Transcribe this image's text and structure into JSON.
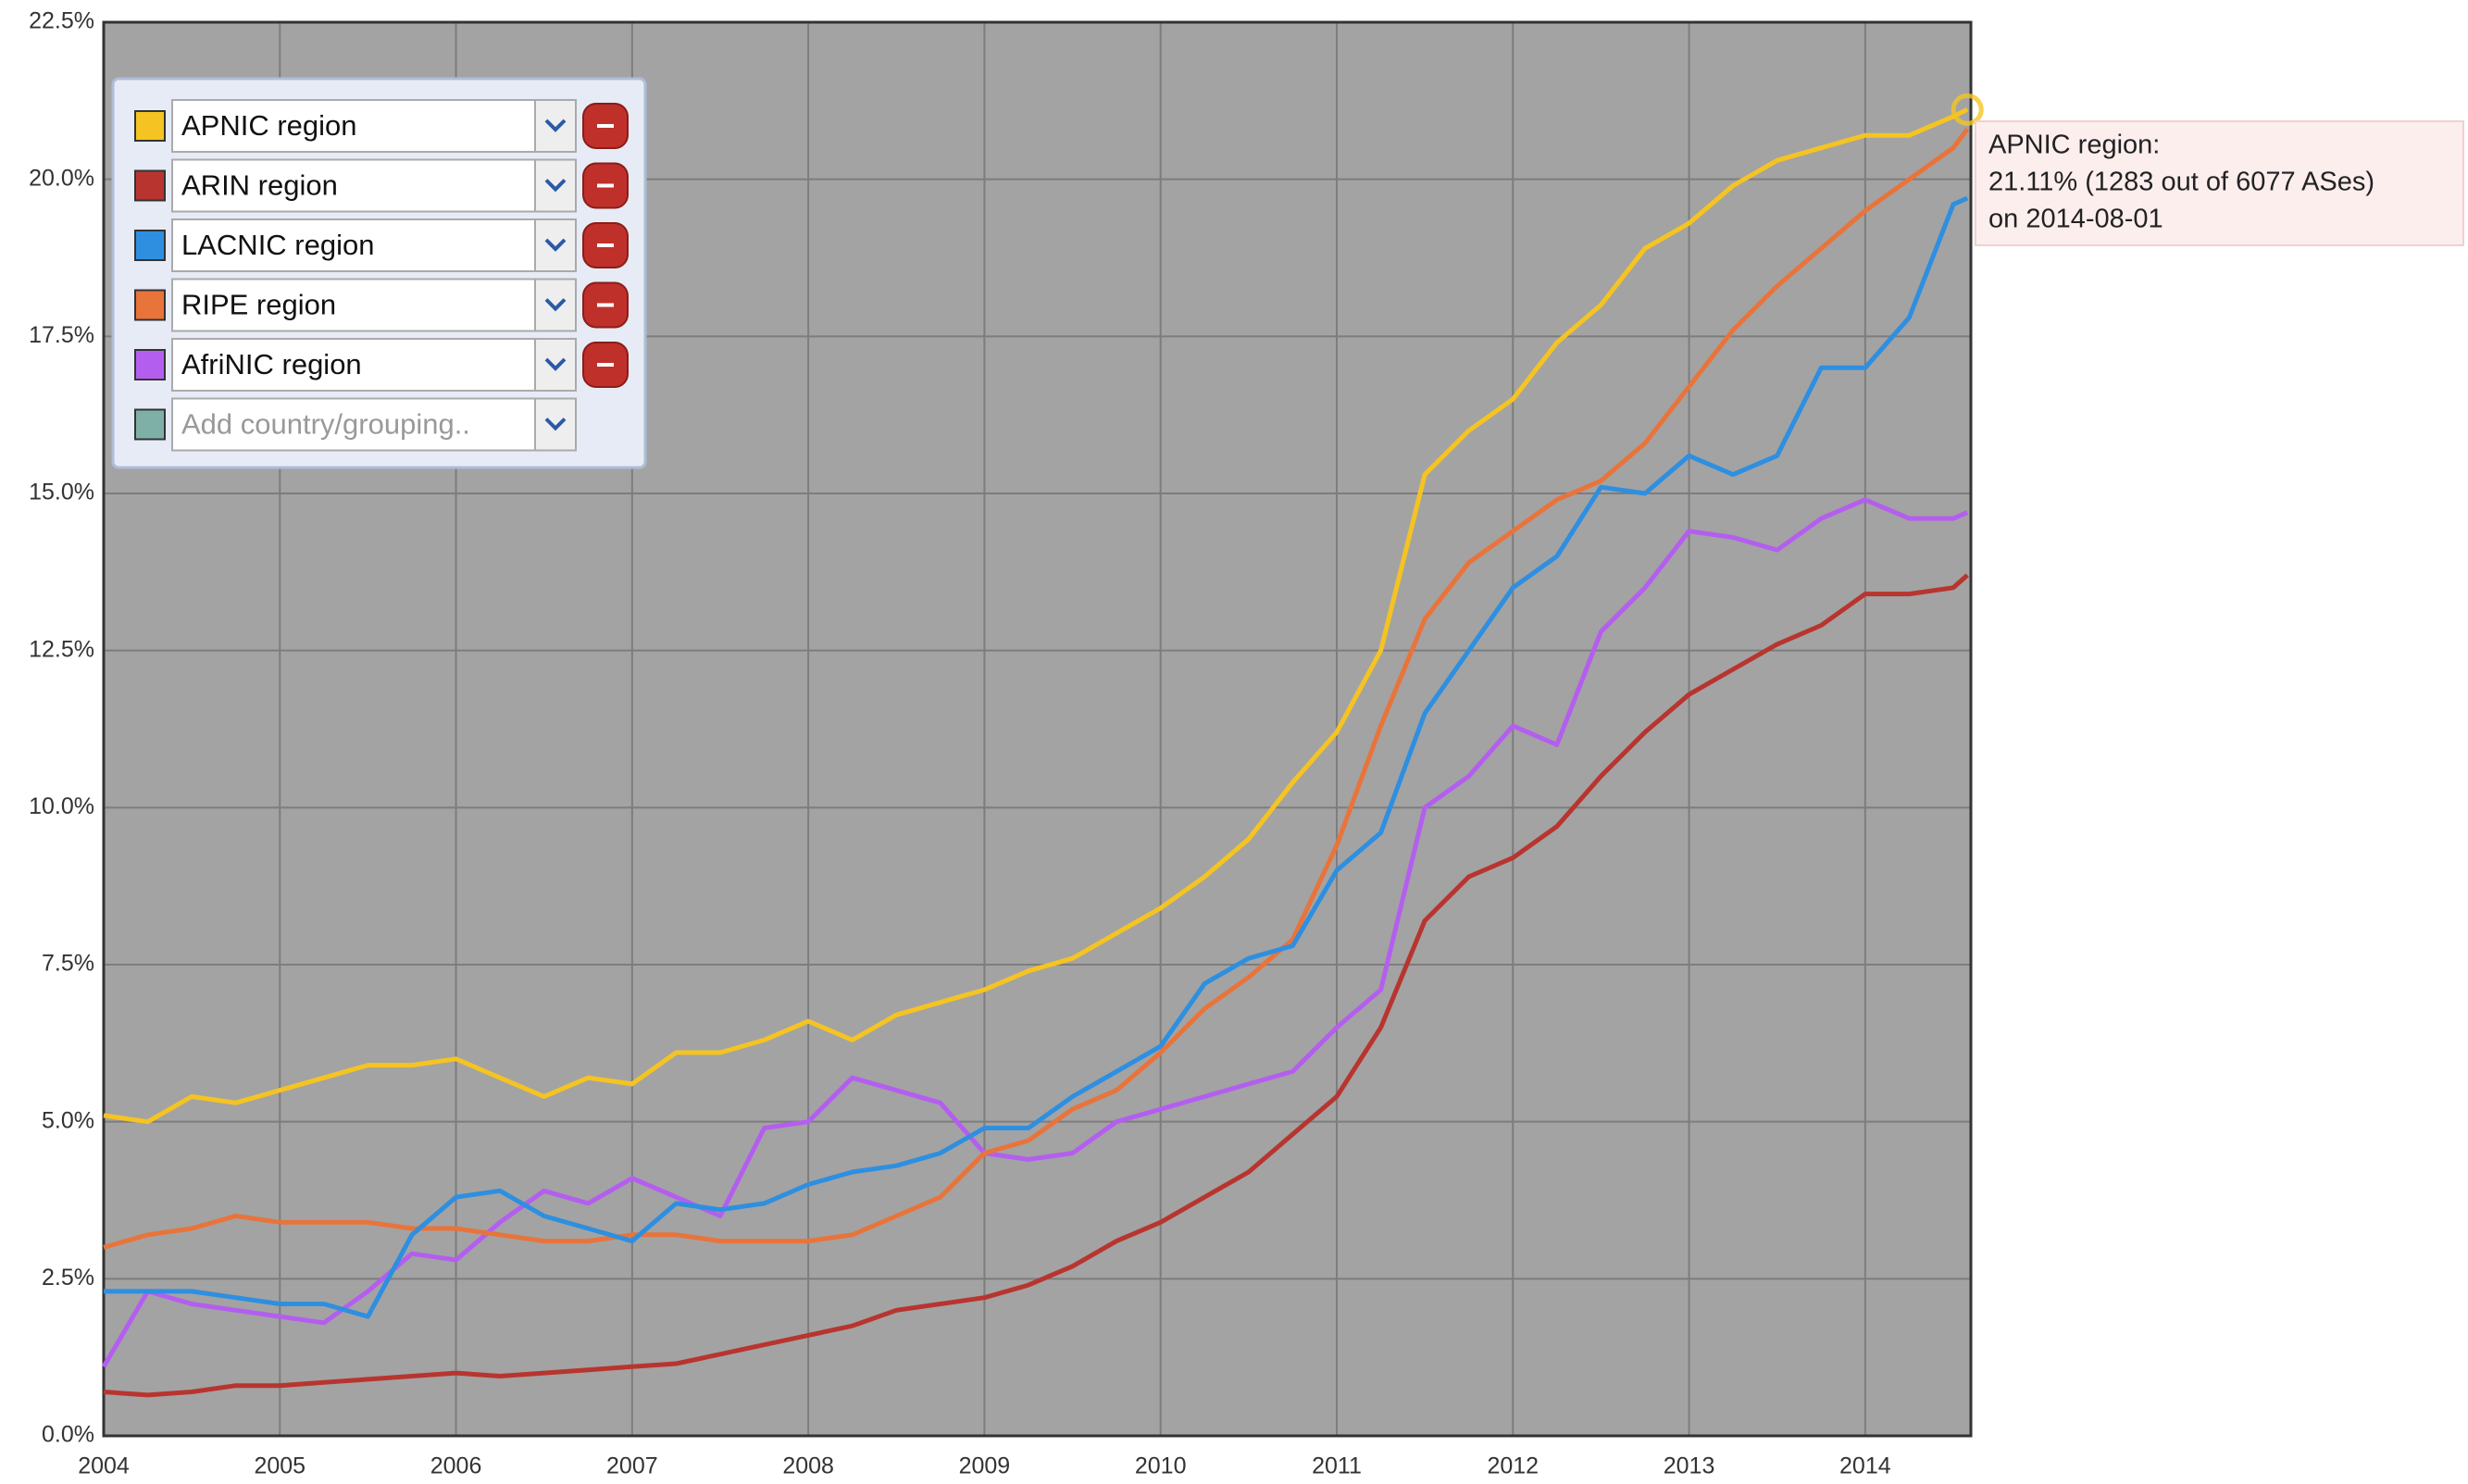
{
  "chart_data": {
    "type": "line",
    "x": [
      2004,
      2004.25,
      2004.5,
      2004.75,
      2005,
      2005.25,
      2005.5,
      2005.75,
      2006,
      2006.25,
      2006.5,
      2006.75,
      2007,
      2007.25,
      2007.5,
      2007.75,
      2008,
      2008.25,
      2008.5,
      2008.75,
      2009,
      2009.25,
      2009.5,
      2009.75,
      2010,
      2010.25,
      2010.5,
      2010.75,
      2011,
      2011.25,
      2011.5,
      2011.75,
      2012,
      2012.25,
      2012.5,
      2012.75,
      2013,
      2013.25,
      2013.5,
      2013.75,
      2014,
      2014.25,
      2014.5,
      2014.58
    ],
    "series": [
      {
        "name": "APNIC region",
        "color": "#f5c422",
        "values": [
          5.1,
          5.0,
          5.4,
          5.3,
          5.5,
          5.7,
          5.9,
          5.9,
          6.0,
          5.7,
          5.4,
          5.7,
          5.6,
          6.1,
          6.1,
          6.3,
          6.6,
          6.3,
          6.7,
          6.9,
          7.1,
          7.4,
          7.6,
          8.0,
          8.4,
          8.9,
          9.5,
          10.4,
          11.2,
          12.5,
          15.3,
          16.0,
          16.5,
          17.4,
          18.0,
          18.9,
          19.3,
          19.9,
          20.3,
          20.5,
          20.7,
          20.7,
          21.0,
          21.11
        ]
      },
      {
        "name": "ARIN region",
        "color": "#b8352f",
        "values": [
          0.7,
          0.65,
          0.7,
          0.8,
          0.8,
          0.85,
          0.9,
          0.95,
          1.0,
          0.95,
          1.0,
          1.05,
          1.1,
          1.15,
          1.3,
          1.45,
          1.6,
          1.75,
          2.0,
          2.1,
          2.2,
          2.4,
          2.7,
          3.1,
          3.4,
          3.8,
          4.2,
          4.8,
          5.4,
          6.5,
          8.2,
          8.9,
          9.2,
          9.7,
          10.5,
          11.2,
          11.8,
          12.2,
          12.6,
          12.9,
          13.4,
          13.4,
          13.5,
          13.7
        ]
      },
      {
        "name": "LACNIC region",
        "color": "#2e8fe0",
        "values": [
          2.3,
          2.3,
          2.3,
          2.2,
          2.1,
          2.1,
          1.9,
          3.2,
          3.8,
          3.9,
          3.5,
          3.3,
          3.1,
          3.7,
          3.6,
          3.7,
          4.0,
          4.2,
          4.3,
          4.5,
          4.9,
          4.9,
          5.4,
          5.8,
          6.2,
          7.2,
          7.6,
          7.8,
          9.0,
          9.6,
          11.5,
          12.5,
          13.5,
          14.0,
          15.1,
          15.0,
          15.6,
          15.3,
          15.6,
          17.0,
          17.0,
          17.8,
          19.6,
          19.7
        ]
      },
      {
        "name": "RIPE region",
        "color": "#e8743b",
        "values": [
          3.0,
          3.2,
          3.3,
          3.5,
          3.4,
          3.4,
          3.4,
          3.3,
          3.3,
          3.2,
          3.1,
          3.1,
          3.2,
          3.2,
          3.1,
          3.1,
          3.1,
          3.2,
          3.5,
          3.8,
          4.5,
          4.7,
          5.2,
          5.5,
          6.1,
          6.8,
          7.3,
          7.9,
          9.4,
          11.3,
          13.0,
          13.9,
          14.4,
          14.9,
          15.2,
          15.8,
          16.7,
          17.6,
          18.3,
          18.9,
          19.5,
          20.0,
          20.5,
          20.8
        ]
      },
      {
        "name": "AfriNIC region",
        "color": "#b45ef0",
        "values": [
          1.1,
          2.3,
          2.1,
          2.0,
          1.9,
          1.8,
          2.3,
          2.9,
          2.8,
          3.4,
          3.9,
          3.7,
          4.1,
          3.8,
          3.5,
          4.9,
          5.0,
          5.7,
          5.5,
          5.3,
          4.5,
          4.4,
          4.5,
          5.0,
          5.2,
          5.4,
          5.6,
          5.8,
          6.5,
          7.1,
          10.0,
          10.5,
          11.3,
          11.0,
          12.8,
          13.5,
          14.4,
          14.3,
          14.1,
          14.6,
          14.9,
          14.6,
          14.6,
          14.7
        ]
      }
    ],
    "xlim": [
      2004,
      2014.6
    ],
    "xticks": [
      2004,
      2005,
      2006,
      2007,
      2008,
      2009,
      2010,
      2011,
      2012,
      2013,
      2014
    ],
    "ylim": [
      0,
      22.5
    ],
    "yticks": [
      {
        "value": 0,
        "label": "0.0%"
      },
      {
        "value": 2.5,
        "label": "2.5%"
      },
      {
        "value": 5,
        "label": "5.0%"
      },
      {
        "value": 7.5,
        "label": "7.5%"
      },
      {
        "value": 10,
        "label": "10.0%"
      },
      {
        "value": 12.5,
        "label": "12.5%"
      },
      {
        "value": 15,
        "label": "15.0%"
      },
      {
        "value": 17.5,
        "label": "17.5%"
      },
      {
        "value": 20,
        "label": "20.0%"
      },
      {
        "value": 22.5,
        "label": "22.5%"
      }
    ],
    "grid": true,
    "legend": "upper left",
    "legend_placeholder": "Add country/grouping..",
    "placeholder_color": "#7fb0a8",
    "tooltip": [
      "APNIC region:",
      "21.11% (1283 out of 6077 ASes)",
      "on 2014-08-01"
    ]
  }
}
